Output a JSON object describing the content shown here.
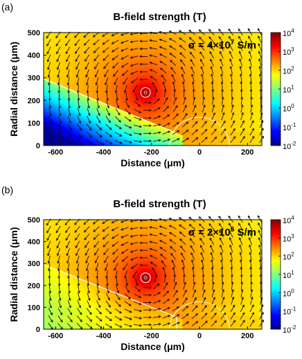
{
  "chart_data": [
    {
      "type": "heatmap",
      "panel_label": "(a)",
      "title": "B-field strength (T)",
      "xlabel": "Distance (μm)",
      "ylabel": "Radial distance (μm)",
      "xlim": [
        -650,
        260
      ],
      "ylim": [
        0,
        500
      ],
      "x_ticks": [
        "-600",
        "-400",
        "-200",
        "0",
        "200"
      ],
      "x_tick_values": [
        -600,
        -400,
        -200,
        0,
        200
      ],
      "y_ticks": [
        "0",
        "100",
        "200",
        "300",
        "400",
        "500"
      ],
      "y_tick_values": [
        0,
        100,
        200,
        300,
        400,
        500
      ],
      "colorbar": {
        "scale": "log",
        "range": [
          0.01,
          10000
        ],
        "tick_labels": [
          "10-2",
          "10-1",
          "100",
          "101",
          "102",
          "103",
          "104"
        ],
        "tick_bases": [
          "10",
          "10",
          "10",
          "10",
          "10",
          "10",
          "10"
        ],
        "tick_exponents": [
          "-2",
          "-1",
          "0",
          "1",
          "2",
          "3",
          "4"
        ]
      },
      "annotation": {
        "prefix": "σ = 4×10",
        "exponent": "7",
        "suffix": " S/m"
      },
      "current_loop_center": [
        -225,
        235
      ],
      "boundary_line": {
        "from": [
          -650,
          295
        ],
        "to": [
          -95,
          55
        ]
      },
      "arc_center": [
        0,
        0
      ],
      "arc_radius": 125,
      "field_shielded_below_boundary": true
    },
    {
      "type": "heatmap",
      "panel_label": "(b)",
      "title": "B-field strength (T)",
      "xlabel": "Distance (μm)",
      "ylabel": "Radial distance (μm)",
      "xlim": [
        -650,
        260
      ],
      "ylim": [
        0,
        500
      ],
      "x_ticks": [
        "-600",
        "-400",
        "-200",
        "0",
        "200"
      ],
      "x_tick_values": [
        -600,
        -400,
        -200,
        0,
        200
      ],
      "y_ticks": [
        "0",
        "100",
        "200",
        "300",
        "400",
        "500"
      ],
      "y_tick_values": [
        0,
        100,
        200,
        300,
        400,
        500
      ],
      "colorbar": {
        "scale": "log",
        "range": [
          0.01,
          10000
        ],
        "tick_labels": [
          "10-2",
          "10-1",
          "100",
          "101",
          "102",
          "103",
          "104"
        ],
        "tick_bases": [
          "10",
          "10",
          "10",
          "10",
          "10",
          "10",
          "10"
        ],
        "tick_exponents": [
          "-2",
          "-1",
          "0",
          "1",
          "2",
          "3",
          "4"
        ]
      },
      "annotation": {
        "prefix": "σ = 2×10",
        "exponent": "6",
        "suffix": " S/m"
      },
      "current_loop_center": [
        -225,
        235
      ],
      "boundary_line": {
        "from": [
          -650,
          295
        ],
        "to": [
          -95,
          55
        ]
      },
      "arc_center": [
        0,
        0
      ],
      "arc_radius": 125,
      "field_shielded_below_boundary": false
    }
  ]
}
